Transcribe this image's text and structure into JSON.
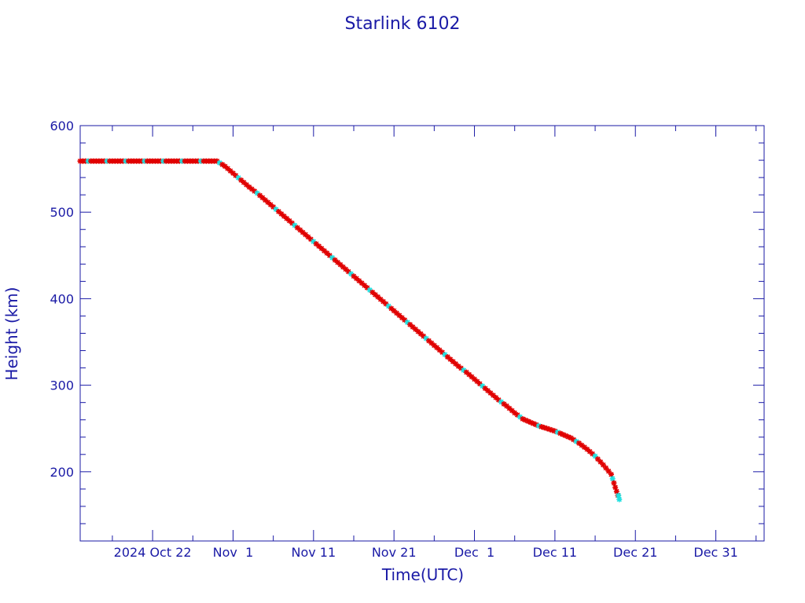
{
  "chart_data": {
    "type": "scatter",
    "title": "Starlink 6102",
    "xlabel": "Time(UTC)",
    "ylabel": "Height (km)",
    "ylim": [
      120,
      600
    ],
    "xlim": [
      "2024-10-13",
      "2025-01-06"
    ],
    "y_ticks": [
      200,
      300,
      400,
      500,
      600
    ],
    "x_ticks": [
      {
        "date": "2024-10-22",
        "label": "2024 Oct 22"
      },
      {
        "date": "2024-11-01",
        "label": "Nov  1"
      },
      {
        "date": "2024-11-11",
        "label": "Nov 11"
      },
      {
        "date": "2024-11-21",
        "label": "Nov 21"
      },
      {
        "date": "2024-12-01",
        "label": "Dec  1"
      },
      {
        "date": "2024-12-11",
        "label": "Dec 11"
      },
      {
        "date": "2024-12-21",
        "label": "Dec 21"
      },
      {
        "date": "2024-12-31",
        "label": "Dec 31"
      }
    ],
    "grid": false,
    "colors": {
      "axis": "#1a1aa6",
      "line": "#000000",
      "marker_primary": "#e00000",
      "marker_secondary": "#20e0e0"
    },
    "series": [
      {
        "marker": "star",
        "points": [
          [
            "2024-10-13",
            559
          ],
          [
            "2024-10-14",
            559
          ],
          [
            "2024-10-15",
            559
          ],
          [
            "2024-10-16",
            559
          ],
          [
            "2024-10-17",
            559
          ],
          [
            "2024-10-18",
            559
          ],
          [
            "2024-10-19",
            559
          ],
          [
            "2024-10-20",
            559
          ],
          [
            "2024-10-21",
            559
          ],
          [
            "2024-10-22",
            559
          ],
          [
            "2024-10-23",
            559
          ],
          [
            "2024-10-24",
            559
          ],
          [
            "2024-10-25",
            559
          ],
          [
            "2024-10-26",
            559
          ],
          [
            "2024-10-27",
            559
          ],
          [
            "2024-10-28",
            559
          ],
          [
            "2024-10-29",
            559
          ],
          [
            "2024-10-30",
            559
          ],
          [
            "2024-10-31",
            553
          ],
          [
            "2024-11-01",
            545
          ],
          [
            "2024-11-02",
            537
          ],
          [
            "2024-11-03",
            529
          ],
          [
            "2024-11-04",
            522
          ],
          [
            "2024-11-05",
            514
          ],
          [
            "2024-11-06",
            506
          ],
          [
            "2024-11-07",
            498
          ],
          [
            "2024-11-08",
            490
          ],
          [
            "2024-11-09",
            482
          ],
          [
            "2024-11-10",
            474
          ],
          [
            "2024-11-11",
            466
          ],
          [
            "2024-11-12",
            458
          ],
          [
            "2024-11-13",
            450
          ],
          [
            "2024-11-14",
            442
          ],
          [
            "2024-11-15",
            434
          ],
          [
            "2024-11-16",
            426
          ],
          [
            "2024-11-17",
            418
          ],
          [
            "2024-11-18",
            410
          ],
          [
            "2024-11-19",
            402
          ],
          [
            "2024-11-20",
            394
          ],
          [
            "2024-11-21",
            386
          ],
          [
            "2024-11-22",
            378
          ],
          [
            "2024-11-23",
            370
          ],
          [
            "2024-11-24",
            362
          ],
          [
            "2024-11-25",
            354
          ],
          [
            "2024-11-26",
            346
          ],
          [
            "2024-11-27",
            338
          ],
          [
            "2024-11-28",
            330
          ],
          [
            "2024-11-29",
            322
          ],
          [
            "2024-11-30",
            315
          ],
          [
            "2024-12-01",
            307
          ],
          [
            "2024-12-02",
            299
          ],
          [
            "2024-12-03",
            291
          ],
          [
            "2024-12-04",
            283
          ],
          [
            "2024-12-05",
            276
          ],
          [
            "2024-12-06",
            268
          ],
          [
            "2024-12-07",
            261
          ],
          [
            "2024-12-08",
            257
          ],
          [
            "2024-12-09",
            253
          ],
          [
            "2024-12-10",
            250
          ],
          [
            "2024-12-11",
            247
          ],
          [
            "2024-12-12",
            243
          ],
          [
            "2024-12-13",
            239
          ],
          [
            "2024-12-14",
            233
          ],
          [
            "2024-12-15",
            226
          ],
          [
            "2024-12-16",
            218
          ],
          [
            "2024-12-17",
            208
          ],
          [
            "2024-12-18",
            197
          ],
          [
            "2024-12-18T12",
            182
          ],
          [
            "2024-12-19",
            168
          ]
        ]
      }
    ]
  }
}
